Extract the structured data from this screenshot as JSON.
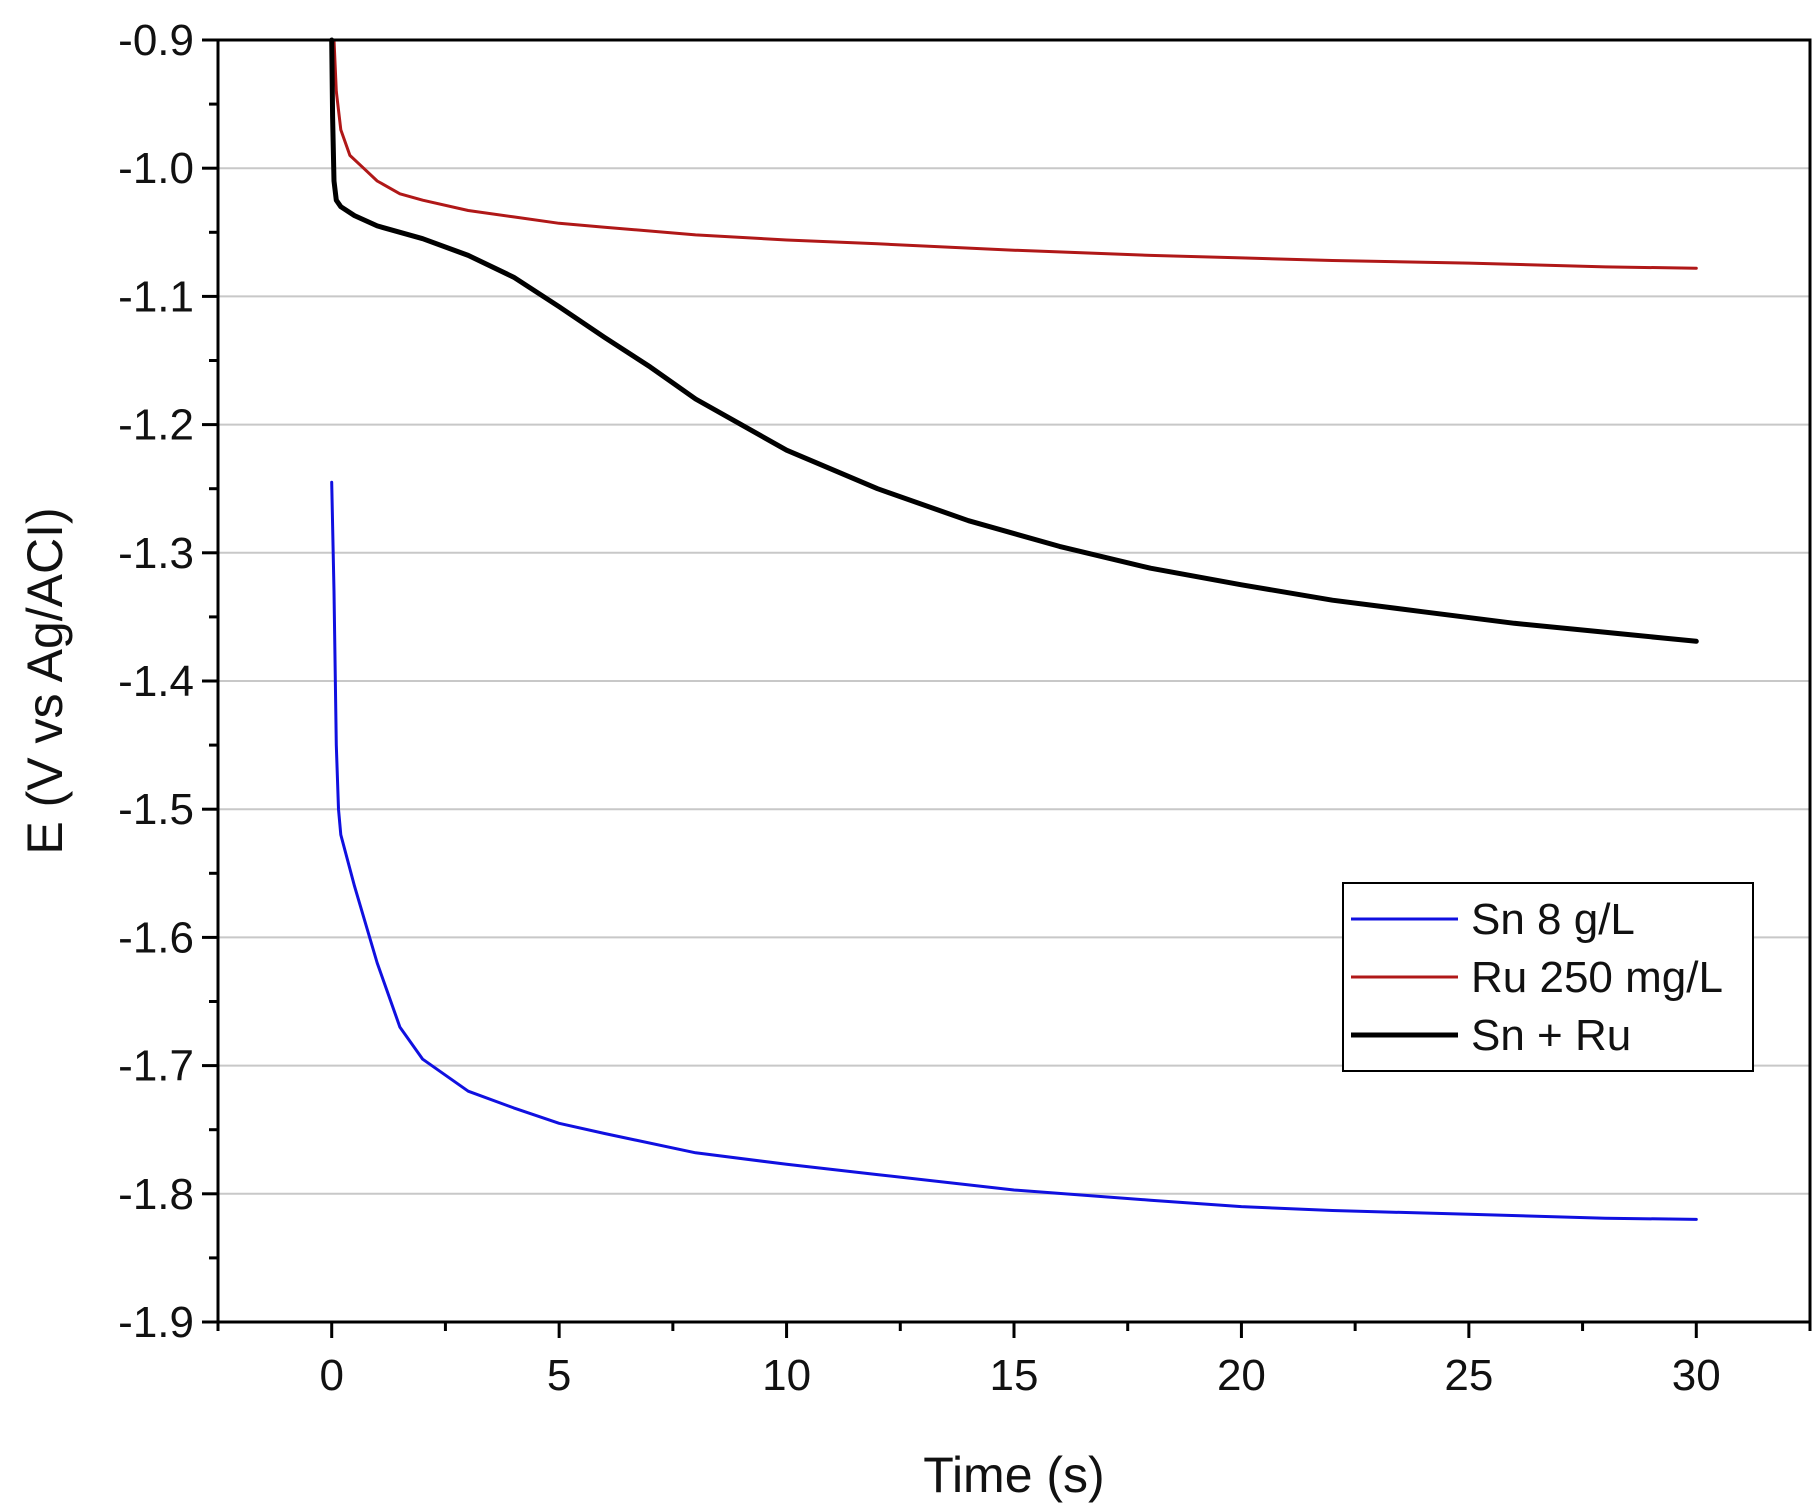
{
  "chart_data": {
    "type": "line",
    "title": "",
    "xlabel": "Time (s)",
    "ylabel": "E (V vs Ag/ACI)",
    "xlim": [
      -2.5,
      32.5
    ],
    "ylim": [
      -1.9,
      -0.9
    ],
    "xticks": [
      0,
      5,
      10,
      15,
      20,
      25,
      30
    ],
    "xtick_labels": [
      "0",
      "5",
      "10",
      "15",
      "20",
      "25",
      "30"
    ],
    "yticks": [
      -0.9,
      -1.0,
      -1.1,
      -1.2,
      -1.3,
      -1.4,
      -1.5,
      -1.6,
      -1.7,
      -1.8,
      -1.9
    ],
    "ytick_labels": [
      "-0.9",
      "-1.0",
      "-1.1",
      "-1.2",
      "-1.3",
      "-1.4",
      "-1.5",
      "-1.6",
      "-1.7",
      "-1.8",
      "-1.9"
    ],
    "grid": "horizontal",
    "legend_position": "right",
    "series": [
      {
        "name": "Sn 8 g/L",
        "color": "#1010e0",
        "x": [
          0,
          0.05,
          0.1,
          0.15,
          0.2,
          0.5,
          1,
          1.5,
          2,
          3,
          4,
          5,
          6,
          8,
          10,
          12,
          15,
          18,
          20,
          22,
          25,
          28,
          30
        ],
        "y": [
          -1.245,
          -1.33,
          -1.45,
          -1.5,
          -1.52,
          -1.56,
          -1.62,
          -1.67,
          -1.695,
          -1.72,
          -1.733,
          -1.745,
          -1.753,
          -1.768,
          -1.777,
          -1.785,
          -1.797,
          -1.805,
          -1.81,
          -1.813,
          -1.816,
          -1.819,
          -1.82
        ]
      },
      {
        "name": "Ru 250 mg/L",
        "color": "#b01818",
        "x": [
          0.05,
          0.1,
          0.2,
          0.4,
          0.7,
          1,
          1.5,
          2,
          3,
          4,
          5,
          6,
          8,
          10,
          12,
          15,
          18,
          20,
          22,
          25,
          28,
          30
        ],
        "y": [
          -0.9,
          -0.94,
          -0.97,
          -0.99,
          -1.0,
          -1.01,
          -1.02,
          -1.025,
          -1.033,
          -1.038,
          -1.043,
          -1.046,
          -1.052,
          -1.056,
          -1.059,
          -1.064,
          -1.068,
          -1.07,
          -1.072,
          -1.074,
          -1.077,
          -1.078
        ]
      },
      {
        "name": "Sn + Ru",
        "color": "#000000",
        "x": [
          0,
          0.02,
          0.05,
          0.1,
          0.2,
          0.5,
          1,
          2,
          3,
          4,
          5,
          6,
          7,
          8,
          9,
          10,
          12,
          14,
          16,
          18,
          20,
          22,
          24,
          26,
          28,
          30
        ],
        "y": [
          -0.9,
          -0.96,
          -1.01,
          -1.025,
          -1.03,
          -1.037,
          -1.045,
          -1.055,
          -1.068,
          -1.085,
          -1.108,
          -1.132,
          -1.155,
          -1.18,
          -1.2,
          -1.22,
          -1.25,
          -1.275,
          -1.295,
          -1.312,
          -1.325,
          -1.337,
          -1.346,
          -1.355,
          -1.362,
          -1.369
        ]
      }
    ]
  }
}
